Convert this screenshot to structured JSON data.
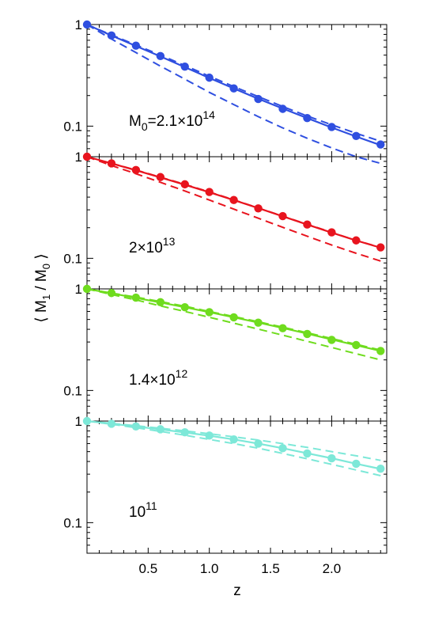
{
  "chart_data": {
    "type": "line",
    "xlabel": "z",
    "ylabel": "⟨ M₁ / M₀ ⟩",
    "ylabel_parts": {
      "open": "⟨ M",
      "sub1": "1",
      "mid": " / M",
      "sub2": "0",
      "close": " ⟩"
    },
    "xlim": [
      0,
      2.45
    ],
    "x_ticks": [
      0.5,
      1.0,
      1.5,
      2.0
    ],
    "x_tick_labels": [
      "0.5",
      "1.0",
      "1.5",
      "2.0"
    ],
    "y_scale": "log",
    "ylim": [
      0.05,
      1
    ],
    "y_ticks": [
      1,
      0.1
    ],
    "y_tick_labels": [
      "1",
      "0.1"
    ],
    "x": [
      0.0,
      0.2,
      0.4,
      0.6,
      0.8,
      1.0,
      1.2,
      1.4,
      1.6,
      1.8,
      2.0,
      2.2,
      2.4
    ],
    "panels": [
      {
        "label": {
          "base": "M",
          "sub": "0",
          "mid": "=2.1×10",
          "sup": "14"
        },
        "color": "#2f4fe0",
        "points": [
          1.0,
          0.78,
          0.62,
          0.49,
          0.385,
          0.3,
          0.235,
          0.185,
          0.148,
          0.12,
          0.098,
          0.08,
          0.066
        ],
        "solid_line": [
          1.0,
          0.78,
          0.615,
          0.485,
          0.38,
          0.298,
          0.235,
          0.186,
          0.149,
          0.12,
          0.097,
          0.079,
          0.065
        ],
        "dashed_upper": [
          1.0,
          0.79,
          0.63,
          0.5,
          0.395,
          0.31,
          0.245,
          0.195,
          0.156,
          0.126,
          0.103,
          0.085,
          0.071
        ],
        "dashed_lower": [
          1.0,
          0.72,
          0.53,
          0.39,
          0.29,
          0.215,
          0.163,
          0.124,
          0.096,
          0.076,
          0.061,
          0.05,
          0.043
        ]
      },
      {
        "label": {
          "base": "2×10",
          "sup": "13"
        },
        "color": "#e8141e",
        "points": [
          1.0,
          0.86,
          0.74,
          0.63,
          0.535,
          0.45,
          0.375,
          0.31,
          0.26,
          0.215,
          0.18,
          0.15,
          0.128
        ],
        "solid_line": [
          1.0,
          0.86,
          0.735,
          0.625,
          0.53,
          0.447,
          0.374,
          0.312,
          0.259,
          0.215,
          0.179,
          0.15,
          0.127
        ],
        "dashed_upper": [
          1.0,
          0.86,
          0.74,
          0.63,
          0.535,
          0.45,
          0.376,
          0.313,
          0.26,
          0.216,
          0.18,
          0.15,
          0.128
        ],
        "dashed_lower": [
          1.0,
          0.82,
          0.68,
          0.56,
          0.46,
          0.375,
          0.305,
          0.248,
          0.202,
          0.165,
          0.135,
          0.112,
          0.094
        ]
      },
      {
        "label": {
          "base": "1.4×10",
          "sup": "12"
        },
        "color": "#6fdc1e",
        "points": [
          1.0,
          0.91,
          0.82,
          0.74,
          0.66,
          0.59,
          0.525,
          0.465,
          0.41,
          0.36,
          0.315,
          0.28,
          0.245
        ],
        "solid_line": [
          1.0,
          0.905,
          0.815,
          0.735,
          0.66,
          0.59,
          0.525,
          0.466,
          0.412,
          0.363,
          0.318,
          0.279,
          0.245
        ],
        "dashed_upper": [
          1.0,
          0.91,
          0.83,
          0.75,
          0.675,
          0.6,
          0.535,
          0.475,
          0.42,
          0.37,
          0.325,
          0.285,
          0.25
        ],
        "dashed_lower": [
          1.0,
          0.88,
          0.78,
          0.68,
          0.6,
          0.525,
          0.46,
          0.402,
          0.35,
          0.305,
          0.265,
          0.23,
          0.2
        ]
      },
      {
        "label": {
          "base": "10",
          "sup": "11"
        },
        "color": "#7de8d8",
        "points": [
          1.0,
          0.94,
          0.885,
          0.83,
          0.775,
          0.72,
          0.66,
          0.6,
          0.54,
          0.48,
          0.43,
          0.38,
          0.34
        ],
        "solid_line": [
          1.0,
          0.94,
          0.885,
          0.828,
          0.773,
          0.718,
          0.66,
          0.6,
          0.54,
          0.482,
          0.43,
          0.38,
          0.338
        ],
        "dashed_upper": [
          1.0,
          0.95,
          0.9,
          0.85,
          0.8,
          0.75,
          0.7,
          0.65,
          0.6,
          0.55,
          0.5,
          0.455,
          0.41
        ],
        "dashed_lower": [
          1.0,
          0.93,
          0.86,
          0.79,
          0.725,
          0.66,
          0.6,
          0.54,
          0.48,
          0.425,
          0.375,
          0.33,
          0.29
        ]
      }
    ]
  }
}
